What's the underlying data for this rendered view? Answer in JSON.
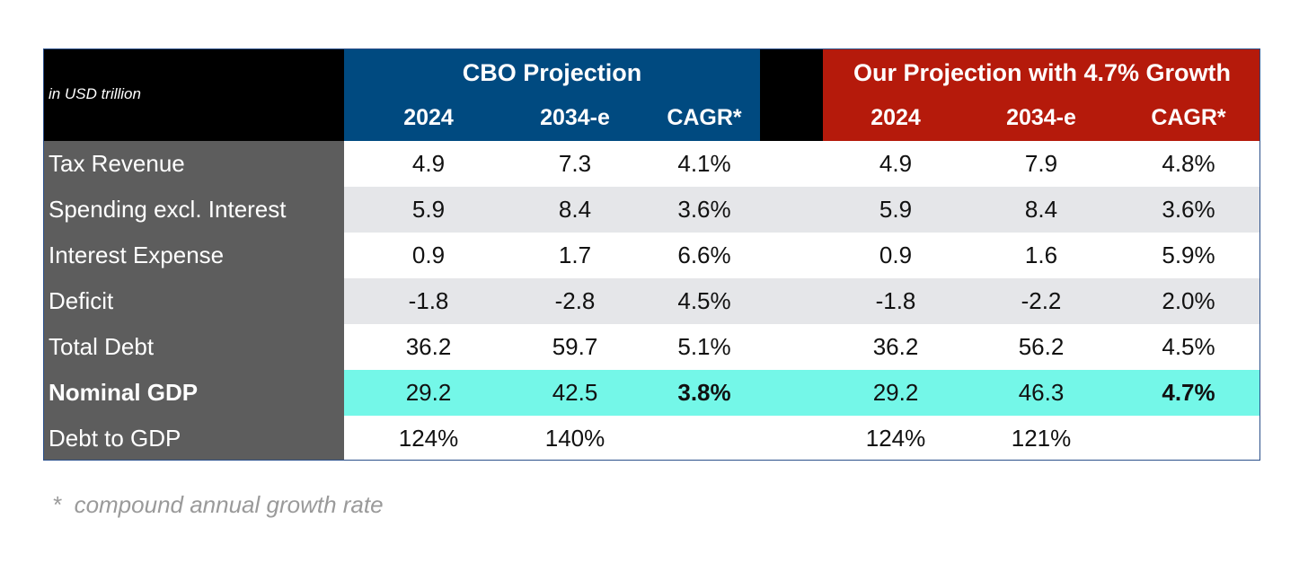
{
  "header": {
    "unit_label": "in USD trillion",
    "cbo_title": "CBO Projection",
    "our_title": "Our Projection with 4.7% Growth",
    "columns": [
      "2024",
      "2034-e",
      "CAGR*",
      "2024",
      "2034-e",
      "CAGR*"
    ]
  },
  "colors": {
    "cbo_header": "#004a80",
    "our_header": "#b51a0b",
    "label_column": "#5d5d5d",
    "highlight_row": "#74f7e8",
    "alt_row": "#e5e6e9"
  },
  "rows": [
    {
      "label": "Tax Revenue",
      "cells": [
        "4.9",
        "7.3",
        "4.1%",
        "4.9",
        "7.9",
        "4.8%"
      ]
    },
    {
      "label": "Spending excl. Interest",
      "cells": [
        "5.9",
        "8.4",
        "3.6%",
        "5.9",
        "8.4",
        "3.6%"
      ]
    },
    {
      "label": "Interest Expense",
      "cells": [
        "0.9",
        "1.7",
        "6.6%",
        "0.9",
        "1.6",
        "5.9%"
      ]
    },
    {
      "label": "Deficit",
      "cells": [
        "-1.8",
        "-2.8",
        "4.5%",
        "-1.8",
        "-2.2",
        "2.0%"
      ]
    },
    {
      "label": "Total Debt",
      "cells": [
        "36.2",
        "59.7",
        "5.1%",
        "36.2",
        "56.2",
        "4.5%"
      ]
    },
    {
      "label": "Nominal GDP",
      "cells": [
        "29.2",
        "42.5",
        "3.8%",
        "29.2",
        "46.3",
        "4.7%"
      ]
    },
    {
      "label": "Debt to GDP",
      "cells": [
        "124%",
        "140%",
        "",
        "124%",
        "121%",
        ""
      ]
    }
  ],
  "footnote": "*  compound annual growth rate"
}
